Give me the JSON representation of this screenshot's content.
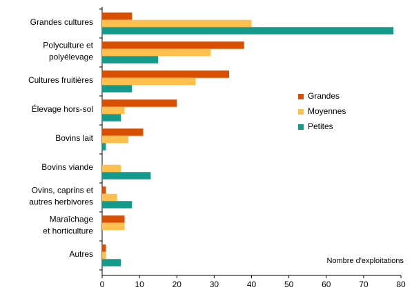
{
  "chart_data": {
    "type": "hbar",
    "categories": [
      "Grandes cultures",
      "Polyculture et\npolyélevage",
      "Cultures fruitières",
      "Élevage hors-sol",
      "Bovins lait",
      "Bovins viande",
      "Ovins, caprins et\nautres  herbivores",
      "Maraîchage\net horticulture",
      "Autres"
    ],
    "series": [
      {
        "name": "Grandes",
        "color": "#d94f00",
        "values": [
          8,
          38,
          34,
          20,
          11,
          0,
          1,
          6,
          1
        ]
      },
      {
        "name": "Moyennes",
        "color": "#ffc04d",
        "values": [
          40,
          29,
          25,
          6,
          7,
          5,
          4,
          6,
          1
        ]
      },
      {
        "name": "Petites",
        "color": "#139a8a",
        "values": [
          78,
          15,
          8,
          5,
          1,
          13,
          8,
          0,
          5
        ]
      }
    ],
    "xlim": [
      0,
      80
    ],
    "xticks": [
      0,
      10,
      20,
      30,
      40,
      50,
      60,
      70,
      80
    ],
    "annotation": "Nombre d'exploitations",
    "legend": "right"
  }
}
